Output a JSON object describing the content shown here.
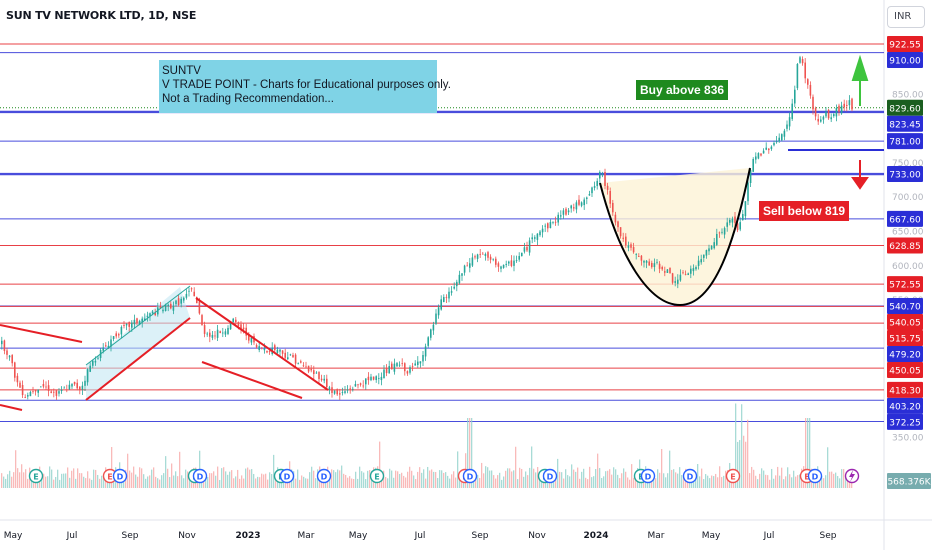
{
  "header": {
    "title": "SUN TV NETWORK LTD, 1D, NSE",
    "currency": "INR"
  },
  "note": {
    "line1": "SUNTV",
    "line2": "V TRADE POINT - Charts for Educational purposes only.",
    "line3": "Not a Trading Recommendation..."
  },
  "annotations": {
    "buy": "Buy above 836",
    "sell": "Sell below 819"
  },
  "colors": {
    "up": "#26a69a",
    "down": "#ef5350",
    "red_line": "#e51f26",
    "blue_line": "#2a2ed6",
    "buy_tag": "#1e8a1e",
    "sell_tag": "#e51f26",
    "note_bg": "#7fd3e6"
  },
  "chart_data": {
    "type": "candlestick",
    "title": "SUN TV NETWORK LTD, 1D, NSE",
    "ylim": [
      340,
      935
    ],
    "x_ticks": [
      "May",
      "Jul",
      "Sep",
      "Nov",
      "2023",
      "Mar",
      "May",
      "Jul",
      "Sep",
      "Nov",
      "2024",
      "Mar",
      "May",
      "Jul",
      "Sep"
    ],
    "y_ticks": [
      350,
      400,
      450,
      500,
      550,
      600,
      650,
      700,
      750,
      800,
      850,
      900
    ],
    "price_levels": [
      {
        "value": 922.55,
        "label": "922.55",
        "kind": "red"
      },
      {
        "value": 910.0,
        "label": "910.00",
        "kind": "blue"
      },
      {
        "value": 829.6,
        "label": "829.60",
        "kind": "current"
      },
      {
        "value": 823.45,
        "label": "823.45",
        "kind": "blue"
      },
      {
        "value": 781.0,
        "label": "781.00",
        "kind": "blue"
      },
      {
        "value": 733.0,
        "label": "733.00",
        "kind": "blue"
      },
      {
        "value": 667.6,
        "label": "667.60",
        "kind": "blue"
      },
      {
        "value": 628.85,
        "label": "628.85",
        "kind": "red"
      },
      {
        "value": 572.55,
        "label": "572.55",
        "kind": "red"
      },
      {
        "value": 540.7,
        "label": "540.70",
        "kind": "blue"
      },
      {
        "value": 540.05,
        "label": "540.05",
        "kind": "red"
      },
      {
        "value": 515.75,
        "label": "515.75",
        "kind": "red"
      },
      {
        "value": 479.2,
        "label": "479.20",
        "kind": "blue"
      },
      {
        "value": 450.05,
        "label": "450.05",
        "kind": "red"
      },
      {
        "value": 418.3,
        "label": "418.30",
        "kind": "red"
      },
      {
        "value": 403.2,
        "label": "403.20",
        "kind": "blue"
      },
      {
        "value": 372.25,
        "label": "372.25",
        "kind": "blue"
      }
    ],
    "volume_label": "568.376K",
    "series": [
      {
        "values": [
          [
            0,
            488
          ],
          [
            8,
            470
          ],
          [
            16,
            430
          ],
          [
            24,
            410
          ],
          [
            32,
            418
          ],
          [
            40,
            425
          ],
          [
            48,
            420
          ],
          [
            56,
            410
          ],
          [
            64,
            420
          ],
          [
            72,
            425
          ],
          [
            80,
            420
          ],
          [
            88,
            450
          ],
          [
            96,
            468
          ],
          [
            104,
            480
          ],
          [
            112,
            495
          ],
          [
            120,
            505
          ],
          [
            128,
            512
          ],
          [
            136,
            518
          ],
          [
            144,
            522
          ],
          [
            152,
            530
          ],
          [
            160,
            536
          ],
          [
            168,
            540
          ],
          [
            176,
            545
          ],
          [
            184,
            552
          ],
          [
            192,
            565
          ],
          [
            196,
            545
          ],
          [
            202,
            505
          ],
          [
            212,
            498
          ],
          [
            222,
            505
          ],
          [
            232,
            518
          ],
          [
            240,
            508
          ],
          [
            248,
            495
          ],
          [
            256,
            480
          ],
          [
            266,
            478
          ],
          [
            276,
            478
          ],
          [
            284,
            470
          ],
          [
            292,
            465
          ],
          [
            300,
            455
          ],
          [
            310,
            445
          ],
          [
            320,
            438
          ],
          [
            330,
            418
          ],
          [
            338,
            410
          ],
          [
            348,
            420
          ],
          [
            358,
            426
          ],
          [
            368,
            432
          ],
          [
            378,
            440
          ],
          [
            388,
            448
          ],
          [
            398,
            456
          ],
          [
            408,
            445
          ],
          [
            418,
            460
          ],
          [
            426,
            485
          ],
          [
            434,
            520
          ],
          [
            440,
            545
          ],
          [
            448,
            558
          ],
          [
            456,
            575
          ],
          [
            464,
            595
          ],
          [
            472,
            610
          ],
          [
            480,
            618
          ],
          [
            488,
            608
          ],
          [
            496,
            602
          ],
          [
            504,
            596
          ],
          [
            512,
            605
          ],
          [
            520,
            615
          ],
          [
            528,
            630
          ],
          [
            536,
            650
          ],
          [
            544,
            655
          ],
          [
            552,
            662
          ],
          [
            560,
            675
          ],
          [
            568,
            680
          ],
          [
            576,
            688
          ],
          [
            584,
            700
          ],
          [
            592,
            710
          ],
          [
            600,
            735
          ],
          [
            606,
            712
          ],
          [
            612,
            680
          ],
          [
            618,
            650
          ],
          [
            626,
            628
          ],
          [
            634,
            615
          ],
          [
            642,
            605
          ],
          [
            650,
            600
          ],
          [
            658,
            600
          ],
          [
            666,
            592
          ],
          [
            672,
            578
          ],
          [
            680,
            582
          ],
          [
            688,
            592
          ],
          [
            696,
            598
          ],
          [
            702,
            612
          ],
          [
            708,
            628
          ],
          [
            716,
            642
          ],
          [
            724,
            655
          ],
          [
            732,
            668
          ],
          [
            738,
            650
          ],
          [
            744,
            690
          ],
          [
            748,
            722
          ],
          [
            752,
            752
          ],
          [
            758,
            762
          ],
          [
            766,
            770
          ],
          [
            774,
            780
          ],
          [
            782,
            792
          ],
          [
            788,
            806
          ],
          [
            794,
            860
          ],
          [
            798,
            908
          ],
          [
            802,
            890
          ],
          [
            806,
            868
          ],
          [
            812,
            828
          ],
          [
            818,
            806
          ],
          [
            824,
            820
          ],
          [
            830,
            815
          ],
          [
            836,
            826
          ],
          [
            842,
            830
          ],
          [
            848,
            840
          ],
          [
            852,
            829
          ]
        ]
      }
    ]
  }
}
